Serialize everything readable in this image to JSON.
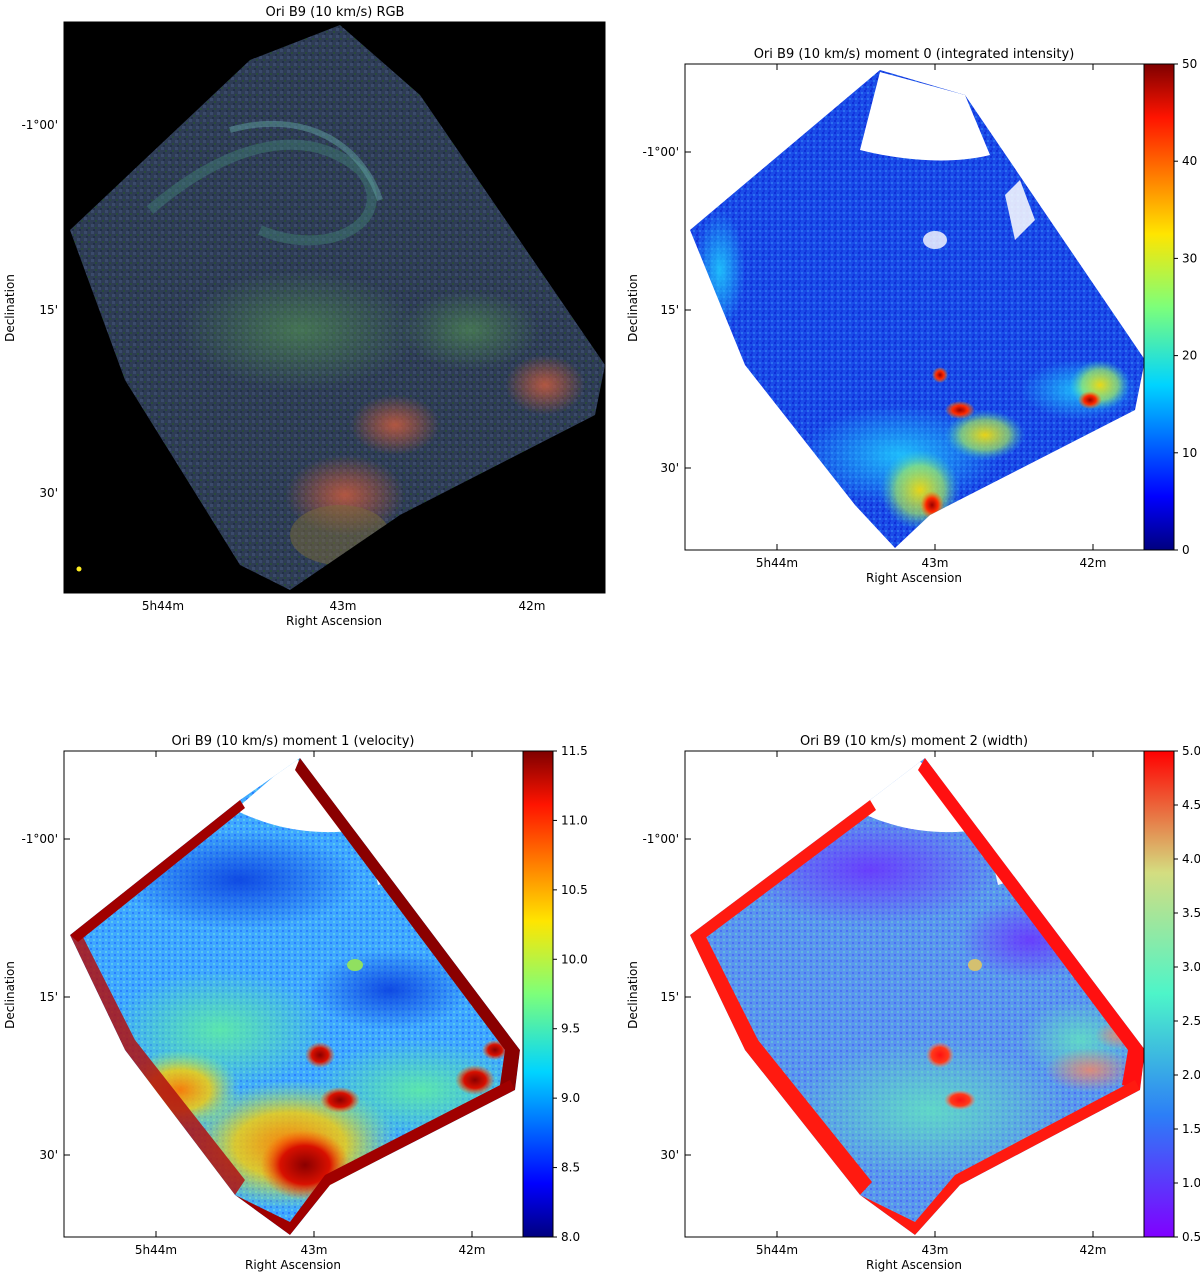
{
  "chart_data": [
    {
      "type": "heatmap",
      "title": "Ori B9 (10 km/s)  RGB",
      "xlabel": "Right Ascension",
      "ylabel": "Declination",
      "x_ticks": [
        "5h44m",
        "43m",
        "42m"
      ],
      "y_ticks": [
        "-1°00'",
        "15'",
        "30'"
      ],
      "colorbar": null,
      "background": "#000000",
      "beam_marker_color": "#ffee22"
    },
    {
      "type": "heatmap",
      "title": "Ori B9 (10 km/s) moment 0 (integrated intensity)",
      "xlabel": "Right Ascension",
      "ylabel": "Declination",
      "x_ticks": [
        "5h44m",
        "43m",
        "42m"
      ],
      "y_ticks": [
        "-1°00'",
        "15'",
        "30'"
      ],
      "colormap": "jet",
      "colorbar": {
        "min": 0,
        "max": 50,
        "ticks": [
          "0",
          "10",
          "20",
          "30",
          "40",
          "50"
        ]
      }
    },
    {
      "type": "heatmap",
      "title": "Ori B9 (10 km/s) moment 1 (velocity)",
      "xlabel": "Right Ascension",
      "ylabel": "Declination",
      "x_ticks": [
        "5h44m",
        "43m",
        "42m"
      ],
      "y_ticks": [
        "-1°00'",
        "15'",
        "30'"
      ],
      "colormap": "jet",
      "colorbar": {
        "min": 8.0,
        "max": 11.5,
        "ticks": [
          "8.0",
          "8.5",
          "9.0",
          "9.5",
          "10.0",
          "10.5",
          "11.0",
          "11.5"
        ]
      }
    },
    {
      "type": "heatmap",
      "title": "Ori B9 (10 km/s) moment 2 (width)",
      "xlabel": "Right Ascension",
      "ylabel": "Declination",
      "x_ticks": [
        "5h44m",
        "43m",
        "42m"
      ],
      "y_ticks": [
        "-1°00'",
        "15'",
        "30'"
      ],
      "colormap": "rainbow",
      "colorbar": {
        "min": 0.5,
        "max": 5.0,
        "ticks": [
          "0.5",
          "1.0",
          "1.5",
          "2.0",
          "2.5",
          "3.0",
          "3.5",
          "4.0",
          "4.5",
          "5.0"
        ]
      }
    }
  ]
}
